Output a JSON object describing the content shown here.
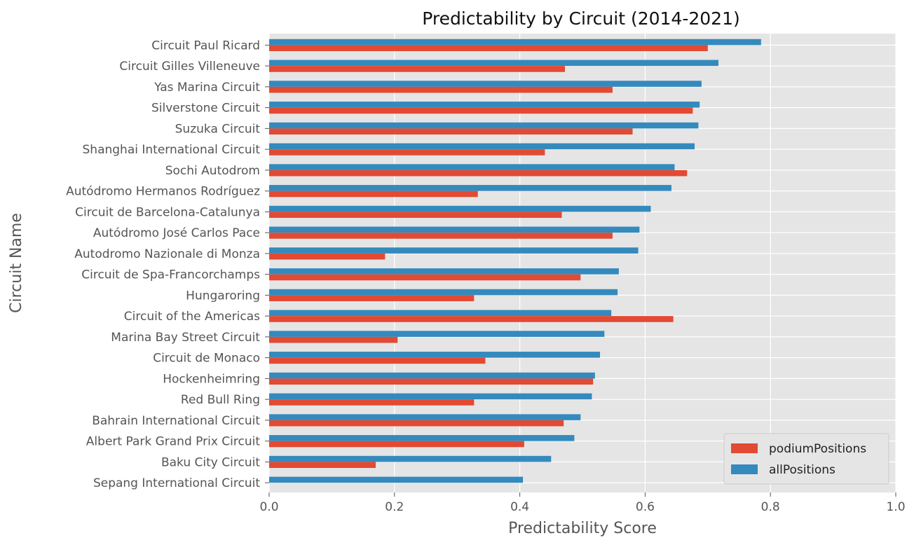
{
  "chart_data": {
    "type": "bar",
    "orientation": "horizontal",
    "title": "Predictability by Circuit (2014-2021)",
    "xlabel": "Predictability Score",
    "ylabel": "Circuit Name",
    "xlim": [
      0,
      1.0
    ],
    "xticks": [
      "0.0",
      "0.2",
      "0.4",
      "0.6",
      "0.8",
      "1.0"
    ],
    "grid": true,
    "legend_position": "lower-right",
    "categories": [
      "Circuit Paul Ricard",
      "Circuit Gilles Villeneuve",
      "Yas Marina Circuit",
      "Silverstone Circuit",
      "Suzuka Circuit",
      "Shanghai International Circuit",
      "Sochi Autodrom",
      "Autódromo Hermanos Rodríguez",
      "Circuit de Barcelona-Catalunya",
      "Autódromo José Carlos Pace",
      "Autodromo Nazionale di Monza",
      "Circuit de Spa-Francorchamps",
      "Hungaroring",
      "Circuit of the Americas",
      "Marina Bay Street Circuit",
      "Circuit de Monaco",
      "Hockenheimring",
      "Red Bull Ring",
      "Bahrain International Circuit",
      "Albert Park Grand Prix Circuit",
      "Baku City Circuit",
      "Sepang International Circuit"
    ],
    "series": [
      {
        "name": "podiumPositions",
        "color": "#E24A33",
        "values": [
          0.7,
          0.472,
          0.548,
          0.676,
          0.58,
          0.44,
          0.667,
          0.333,
          0.467,
          0.548,
          0.185,
          0.497,
          0.327,
          0.645,
          0.205,
          0.345,
          0.517,
          0.327,
          0.47,
          0.407,
          0.17,
          0.0
        ]
      },
      {
        "name": "allPositions",
        "color": "#348ABD",
        "values": [
          0.785,
          0.717,
          0.69,
          0.687,
          0.685,
          0.679,
          0.647,
          0.642,
          0.609,
          0.591,
          0.589,
          0.558,
          0.556,
          0.546,
          0.535,
          0.528,
          0.52,
          0.515,
          0.497,
          0.487,
          0.45,
          0.405
        ]
      }
    ]
  }
}
